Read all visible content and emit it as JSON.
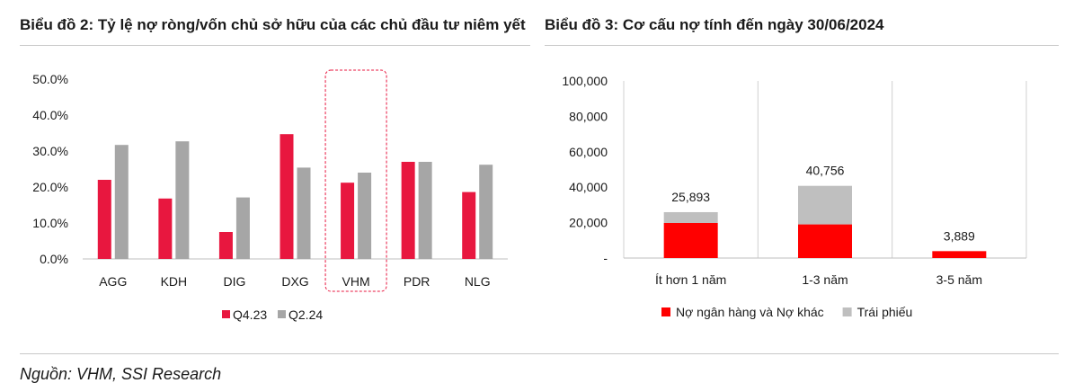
{
  "source": "Nguồn: VHM, SSI Research",
  "chart_data": [
    {
      "type": "bar",
      "title": "Biểu đồ 2: Tỷ lệ nợ ròng/vốn chủ sở hữu của các chủ đầu tư niêm yết",
      "categories": [
        "AGG",
        "KDH",
        "DIG",
        "DXG",
        "VHM",
        "PDR",
        "NLG"
      ],
      "series": [
        {
          "name": "Q4.23",
          "color": "#e8173f",
          "values": [
            22.0,
            16.8,
            7.5,
            34.7,
            21.2,
            27.0,
            18.6
          ]
        },
        {
          "name": "Q2.24",
          "color": "#a6a6a6",
          "values": [
            31.7,
            32.7,
            17.1,
            25.4,
            24.0,
            27.0,
            26.2
          ]
        }
      ],
      "yticks": [
        "0.0%",
        "10.0%",
        "20.0%",
        "30.0%",
        "40.0%",
        "50.0%"
      ],
      "ylim": [
        0,
        50
      ],
      "highlight": "VHM",
      "legend": "bottom",
      "grid": false
    },
    {
      "type": "bar",
      "stacked": true,
      "title": "Biểu đồ 3: Cơ cấu nợ tính đến ngày 30/06/2024",
      "categories": [
        "Ít hơn 1 năm",
        "1-3 năm",
        "3-5 năm"
      ],
      "series": [
        {
          "name": "Nợ ngân hàng và Nợ khác",
          "color": "#ff0000",
          "values": [
            19800,
            19000,
            3889
          ]
        },
        {
          "name": "Trái phiếu",
          "color": "#bfbfbf",
          "values": [
            6093,
            21756,
            0
          ]
        }
      ],
      "totals": [
        "25,893",
        "40,756",
        "3,889"
      ],
      "yticks": [
        "-",
        "20,000",
        "40,000",
        "60,000",
        "80,000",
        "100,000"
      ],
      "ylim": [
        0,
        100000
      ],
      "legend": "bottom",
      "grid": "vertical-separators"
    }
  ]
}
